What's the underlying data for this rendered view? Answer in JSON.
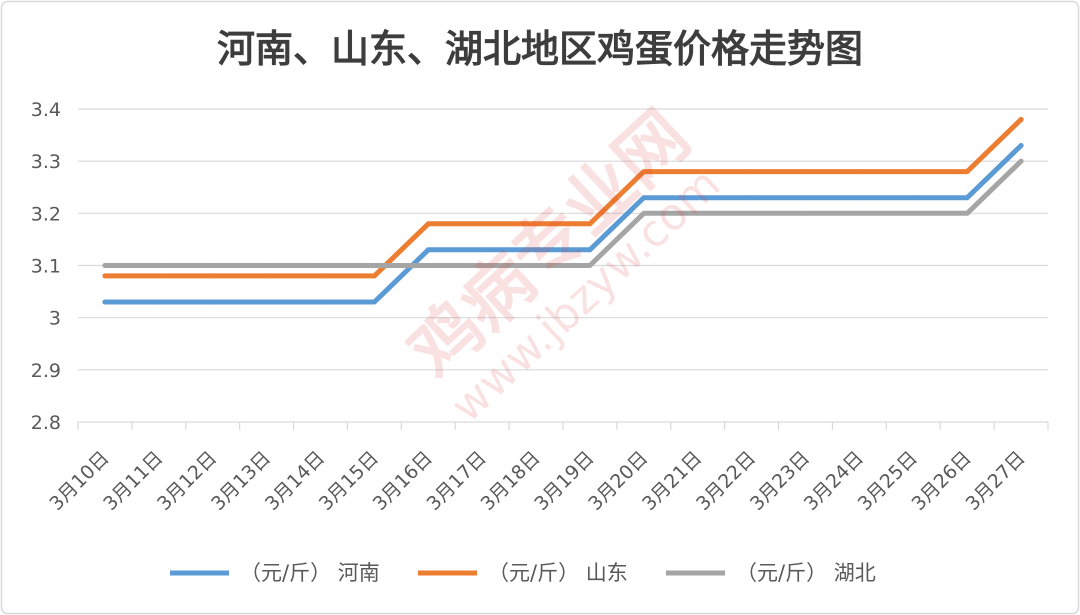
{
  "chart_data": {
    "type": "line",
    "title": "河南、山东、湖北地区鸡蛋价格走势图",
    "categories": [
      "3月10日",
      "3月11日",
      "3月12日",
      "3月13日",
      "3月14日",
      "3月15日",
      "3月16日",
      "3月17日",
      "3月18日",
      "3月19日",
      "3月20日",
      "3月21日",
      "3月22日",
      "3月23日",
      "3月24日",
      "3月25日",
      "3月26日",
      "3月27日"
    ],
    "ylim": [
      2.8,
      3.4
    ],
    "yticks": [
      "2.8",
      "2.9",
      "3",
      "3.1",
      "3.2",
      "3.3",
      "3.4"
    ],
    "grid": true,
    "legend_position": "bottom",
    "series": [
      {
        "name": "（元/斤） 河南",
        "color": "#5b9bd5",
        "values": [
          3.03,
          3.03,
          3.03,
          3.03,
          3.03,
          3.03,
          3.13,
          3.13,
          3.13,
          3.13,
          3.23,
          3.23,
          3.23,
          3.23,
          3.23,
          3.23,
          3.23,
          3.33
        ]
      },
      {
        "name": "（元/斤） 山东",
        "color": "#ed7d31",
        "values": [
          3.08,
          3.08,
          3.08,
          3.08,
          3.08,
          3.08,
          3.18,
          3.18,
          3.18,
          3.18,
          3.28,
          3.28,
          3.28,
          3.28,
          3.28,
          3.28,
          3.28,
          3.38
        ]
      },
      {
        "name": "（元/斤） 湖北",
        "color": "#a5a5a5",
        "values": [
          3.1,
          3.1,
          3.1,
          3.1,
          3.1,
          3.1,
          3.1,
          3.1,
          3.1,
          3.1,
          3.2,
          3.2,
          3.2,
          3.2,
          3.2,
          3.2,
          3.2,
          3.3
        ]
      }
    ]
  },
  "watermark": {
    "site_name": "鸡病专业网",
    "site_url": "www.jbzyw.com"
  }
}
